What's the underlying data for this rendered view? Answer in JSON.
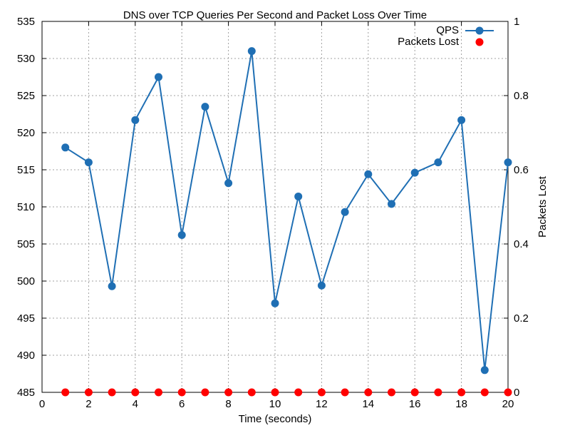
{
  "chart_data": {
    "type": "line",
    "title": "DNS over TCP Queries Per Second and Packet Loss Over Time",
    "xlabel": "Time (seconds)",
    "ylabel": "",
    "y2label": "Packets Lost",
    "xlim": [
      0,
      20
    ],
    "ylim": [
      485,
      535
    ],
    "y2lim": [
      0,
      1
    ],
    "x_ticks": [
      0,
      2,
      4,
      6,
      8,
      10,
      12,
      14,
      16,
      18,
      20
    ],
    "y_ticks": [
      485,
      490,
      495,
      500,
      505,
      510,
      515,
      520,
      525,
      530,
      535
    ],
    "y2_ticks": [
      "0",
      "0.2",
      "0.4",
      "0.6",
      "0.8",
      "1"
    ],
    "grid": true,
    "legend_position": "top-right",
    "x": [
      1,
      2,
      3,
      4,
      5,
      6,
      7,
      8,
      9,
      10,
      11,
      12,
      13,
      14,
      15,
      16,
      17,
      18,
      19,
      20
    ],
    "series": [
      {
        "name": "QPS",
        "axis": "left",
        "style": "linespoints",
        "color": "#1f6fb4",
        "values": [
          518,
          516,
          499.3,
          521.7,
          527.5,
          506.2,
          523.5,
          513.2,
          531,
          497,
          511.4,
          499.4,
          509.3,
          514.4,
          510.4,
          514.6,
          516,
          521.7,
          488,
          516
        ]
      },
      {
        "name": "Packets Lost",
        "axis": "right",
        "style": "points",
        "color": "#ff0000",
        "values": [
          0,
          0,
          0,
          0,
          0,
          0,
          0,
          0,
          0,
          0,
          0,
          0,
          0,
          0,
          0,
          0,
          0,
          0,
          0,
          0
        ]
      }
    ]
  }
}
